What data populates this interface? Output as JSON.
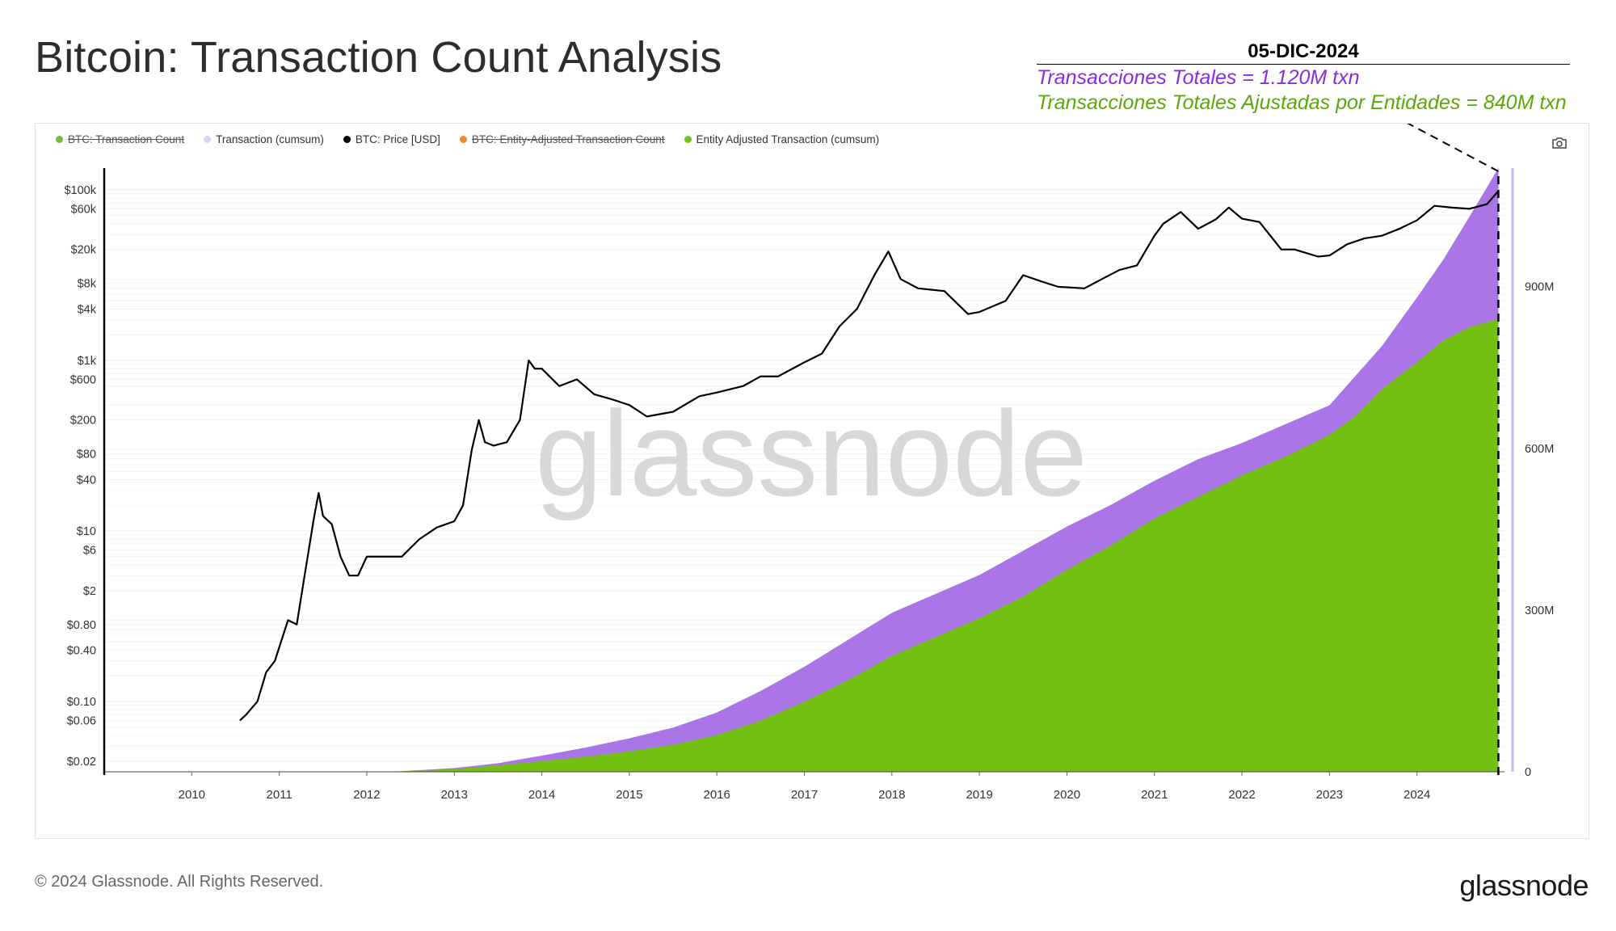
{
  "page": {
    "title": "Bitcoin: Transaction Count Analysis"
  },
  "annotation": {
    "date": "05-DIC-2024",
    "total_text": "Transacciones Totales = 1.120M txn",
    "adjusted_text": "Transacciones Totales Ajustadas por Entidades = 840M txn",
    "total_color": "#8a2be2",
    "adjusted_color": "#5aa80a"
  },
  "legend": [
    {
      "label": "BTC: Transaction Count",
      "color": "#6fbf3b",
      "enabled": false
    },
    {
      "label": "Transaction (cumsum)",
      "color": "#d9d3f2",
      "enabled": true
    },
    {
      "label": "BTC: Price [USD]",
      "color": "#000000",
      "enabled": true
    },
    {
      "label": "BTC: Entity-Adjusted Transaction Count",
      "color": "#f08a2c",
      "enabled": false
    },
    {
      "label": "Entity Adjusted Transaction (cumsum)",
      "color": "#6fc11f",
      "enabled": true
    }
  ],
  "watermark": "glassnode",
  "footer": {
    "copyright": "© 2024 Glassnode. All Rights Reserved.",
    "brand": "glassnode"
  },
  "icons": {
    "camera": "camera-icon"
  },
  "chart_data": {
    "type": "area",
    "title": "Bitcoin: Transaction Count Analysis",
    "x_ticks": [
      "2010",
      "2011",
      "2012",
      "2013",
      "2014",
      "2015",
      "2016",
      "2017",
      "2018",
      "2019",
      "2020",
      "2021",
      "2022",
      "2023",
      "2024"
    ],
    "x_range": [
      2009.0,
      2025.0
    ],
    "left_axis": {
      "scale": "log",
      "range": [
        0.015,
        180000
      ],
      "ticks": [
        {
          "v": 100000,
          "label": "$100k"
        },
        {
          "v": 60000,
          "label": "$60k"
        },
        {
          "v": 20000,
          "label": "$20k"
        },
        {
          "v": 8000,
          "label": "$8k"
        },
        {
          "v": 4000,
          "label": "$4k"
        },
        {
          "v": 1000,
          "label": "$1k"
        },
        {
          "v": 600,
          "label": "$600"
        },
        {
          "v": 200,
          "label": "$200"
        },
        {
          "v": 80,
          "label": "$80"
        },
        {
          "v": 40,
          "label": "$40"
        },
        {
          "v": 10,
          "label": "$10"
        },
        {
          "v": 6,
          "label": "$6"
        },
        {
          "v": 2,
          "label": "$2"
        },
        {
          "v": 0.8,
          "label": "$0.80"
        },
        {
          "v": 0.4,
          "label": "$0.40"
        },
        {
          "v": 0.1,
          "label": "$0.10"
        },
        {
          "v": 0.06,
          "label": "$0.06"
        },
        {
          "v": 0.02,
          "label": "$0.02"
        }
      ]
    },
    "right_axis": {
      "scale": "linear",
      "range": [
        0,
        1120000000
      ],
      "ticks": [
        {
          "v": 0,
          "label": "0"
        },
        {
          "v": 300000000,
          "label": "300M"
        },
        {
          "v": 600000000,
          "label": "600M"
        },
        {
          "v": 900000000,
          "label": "900M"
        }
      ]
    },
    "series": [
      {
        "name": "Transaction (cumsum)",
        "axis": "right",
        "color": "#a56ee6",
        "x": [
          2009.0,
          2010.0,
          2011.0,
          2012.0,
          2012.4,
          2013.0,
          2013.5,
          2014.0,
          2014.5,
          2015.0,
          2015.5,
          2016.0,
          2016.5,
          2017.0,
          2017.5,
          2018.0,
          2018.5,
          2019.0,
          2019.5,
          2020.0,
          2020.5,
          2021.0,
          2021.5,
          2022.0,
          2022.5,
          2023.0,
          2023.3,
          2023.6,
          2024.0,
          2024.3,
          2024.6,
          2024.93
        ],
        "values": [
          0,
          0,
          0,
          0,
          1000000,
          7000000,
          16000000,
          30000000,
          45000000,
          62000000,
          82000000,
          110000000,
          150000000,
          195000000,
          245000000,
          295000000,
          330000000,
          365000000,
          410000000,
          455000000,
          495000000,
          540000000,
          580000000,
          610000000,
          645000000,
          680000000,
          735000000,
          790000000,
          880000000,
          950000000,
          1030000000,
          1120000000
        ]
      },
      {
        "name": "Entity Adjusted Transaction (cumsum)",
        "axis": "right",
        "color": "#74c012",
        "x": [
          2009.0,
          2010.0,
          2011.0,
          2012.0,
          2012.4,
          2013.0,
          2013.5,
          2014.0,
          2014.5,
          2015.0,
          2015.5,
          2016.0,
          2016.5,
          2017.0,
          2017.5,
          2018.0,
          2018.5,
          2019.0,
          2019.5,
          2020.0,
          2020.5,
          2021.0,
          2021.5,
          2022.0,
          2022.5,
          2023.0,
          2023.3,
          2023.6,
          2024.0,
          2024.3,
          2024.6,
          2024.93
        ],
        "values": [
          0,
          0,
          0,
          0,
          1000000,
          5000000,
          12000000,
          20000000,
          28000000,
          38000000,
          50000000,
          68000000,
          95000000,
          130000000,
          170000000,
          215000000,
          250000000,
          285000000,
          325000000,
          375000000,
          420000000,
          470000000,
          510000000,
          550000000,
          585000000,
          625000000,
          660000000,
          710000000,
          760000000,
          800000000,
          825000000,
          840000000
        ]
      },
      {
        "name": "BTC: Price [USD]",
        "axis": "left",
        "color": "#000000",
        "x": [
          2010.55,
          2010.62,
          2010.75,
          2010.85,
          2010.95,
          2011.1,
          2011.2,
          2011.3,
          2011.4,
          2011.45,
          2011.5,
          2011.6,
          2011.7,
          2011.8,
          2011.9,
          2012.0,
          2012.2,
          2012.4,
          2012.6,
          2012.8,
          2013.0,
          2013.1,
          2013.2,
          2013.28,
          2013.35,
          2013.45,
          2013.6,
          2013.75,
          2013.85,
          2013.92,
          2014.0,
          2014.2,
          2014.4,
          2014.6,
          2014.8,
          2015.0,
          2015.2,
          2015.5,
          2015.8,
          2016.0,
          2016.3,
          2016.5,
          2016.7,
          2017.0,
          2017.2,
          2017.4,
          2017.6,
          2017.8,
          2017.96,
          2018.1,
          2018.3,
          2018.6,
          2018.87,
          2019.0,
          2019.3,
          2019.5,
          2019.7,
          2019.9,
          2020.0,
          2020.2,
          2020.4,
          2020.6,
          2020.8,
          2021.0,
          2021.1,
          2021.3,
          2021.5,
          2021.7,
          2021.85,
          2022.0,
          2022.2,
          2022.45,
          2022.6,
          2022.87,
          2023.0,
          2023.2,
          2023.4,
          2023.6,
          2023.8,
          2024.0,
          2024.2,
          2024.4,
          2024.6,
          2024.8,
          2024.93
        ],
        "values": [
          0.06,
          0.07,
          0.1,
          0.22,
          0.3,
          0.9,
          0.8,
          3.5,
          15,
          28,
          15,
          12,
          5,
          3,
          3,
          5,
          5,
          5,
          8,
          11,
          13,
          20,
          90,
          200,
          110,
          100,
          110,
          200,
          1000,
          800,
          800,
          500,
          600,
          400,
          350,
          300,
          220,
          250,
          380,
          420,
          500,
          650,
          650,
          950,
          1200,
          2500,
          4000,
          10000,
          19000,
          9000,
          7000,
          6500,
          3500,
          3700,
          5000,
          10000,
          8500,
          7300,
          7200,
          7000,
          9000,
          11500,
          13000,
          29000,
          40000,
          55000,
          35000,
          45000,
          62000,
          46000,
          42000,
          20000,
          20000,
          16500,
          17000,
          23000,
          27000,
          29000,
          35000,
          44000,
          65000,
          62000,
          60000,
          68000,
          97000
        ]
      }
    ]
  }
}
